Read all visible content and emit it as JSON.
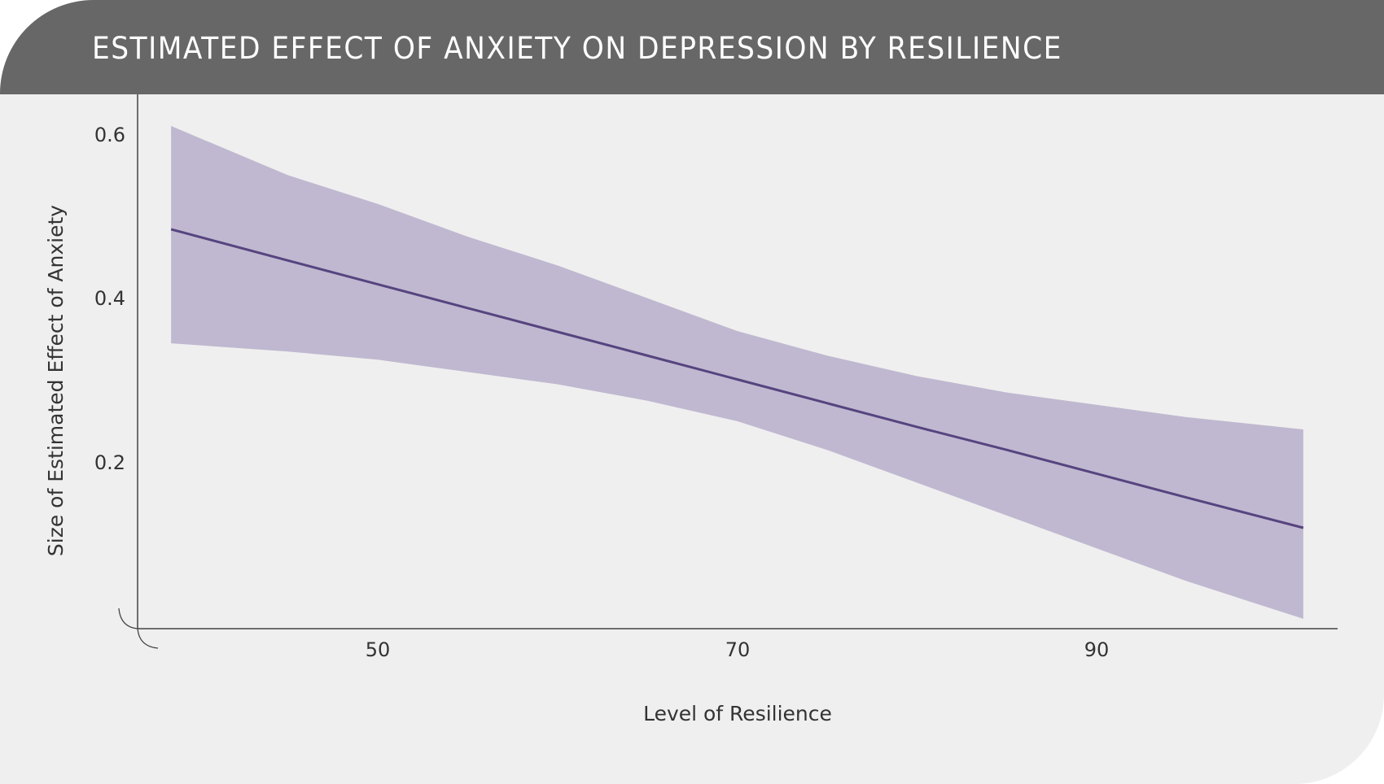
{
  "chart_data": {
    "type": "line",
    "title": "ESTIMATED EFFECT OF ANXIETY ON DEPRESSION BY RESILIENCE",
    "xlabel": "Level of Resilience",
    "ylabel": "Size of Estimated Effect of Anxiety",
    "xlim": [
      38.5,
      101.5
    ],
    "ylim": [
      0,
      0.6
    ],
    "xticks": [
      "50",
      "70",
      "90"
    ],
    "yticks": [
      "0.6",
      "0.4",
      "0.2"
    ],
    "grid": false,
    "legend": "none",
    "x": [
      38.5,
      45,
      50,
      55,
      60,
      65,
      70,
      75,
      80,
      85,
      90,
      95,
      101.5
    ],
    "series": [
      {
        "values": [
          0.484,
          0.446,
          0.417,
          0.388,
          0.359,
          0.33,
          0.301,
          0.272,
          0.243,
          0.215,
          0.186,
          0.157,
          0.12
        ]
      }
    ],
    "confidence_band": {
      "upper": [
        0.61,
        0.55,
        0.515,
        0.475,
        0.44,
        0.4,
        0.36,
        0.33,
        0.305,
        0.285,
        0.27,
        0.255,
        0.24
      ],
      "lower": [
        0.345,
        0.335,
        0.325,
        0.31,
        0.295,
        0.275,
        0.25,
        0.215,
        0.175,
        0.135,
        0.095,
        0.055,
        0.009
      ]
    },
    "colors": {
      "line": "#56447f",
      "band": "#c0b8d0",
      "header": "#676767",
      "background": "#efefef"
    }
  }
}
